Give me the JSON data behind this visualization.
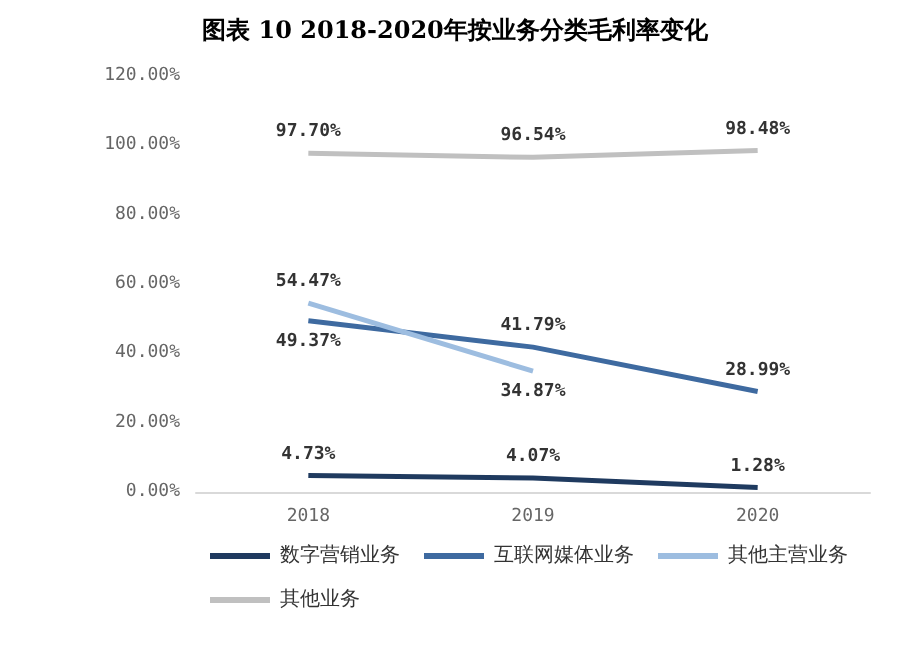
{
  "chart_data": {
    "type": "line",
    "title": "图表 10 2018-2020年按业务分类毛利率变化",
    "categories": [
      "2018",
      "2019",
      "2020"
    ],
    "series": [
      {
        "name": "数字营销业务",
        "color": "#1f3a5f",
        "values": [
          4.73,
          4.07,
          1.28
        ],
        "value_labels": [
          "4.73%",
          "4.07%",
          "1.28%"
        ]
      },
      {
        "name": "互联网媒体业务",
        "color": "#3e6aa0",
        "values": [
          49.37,
          41.79,
          28.99
        ],
        "value_labels": [
          "49.37%",
          "41.79%",
          "28.99%"
        ]
      },
      {
        "name": "其他主营业务",
        "color": "#9dbde0",
        "values": [
          54.47,
          34.87,
          null
        ],
        "value_labels": [
          "54.47%",
          "34.87%",
          null
        ]
      },
      {
        "name": "其他业务",
        "color": "#c0c0c0",
        "values": [
          97.7,
          96.54,
          98.48
        ],
        "value_labels": [
          "97.70%",
          "96.54%",
          "98.48%"
        ]
      }
    ],
    "ylim": [
      0,
      120
    ],
    "yticks": [
      {
        "value": 0,
        "label": "0.00%"
      },
      {
        "value": 20,
        "label": "20.00%"
      },
      {
        "value": 40,
        "label": "40.00%"
      },
      {
        "value": 60,
        "label": "60.00%"
      },
      {
        "value": 80,
        "label": "80.00%"
      },
      {
        "value": 100,
        "label": "100.00%"
      },
      {
        "value": 120,
        "label": "120.00%"
      }
    ],
    "grid": false,
    "legend": "bottom",
    "marker": "none",
    "line_style": "solid"
  }
}
